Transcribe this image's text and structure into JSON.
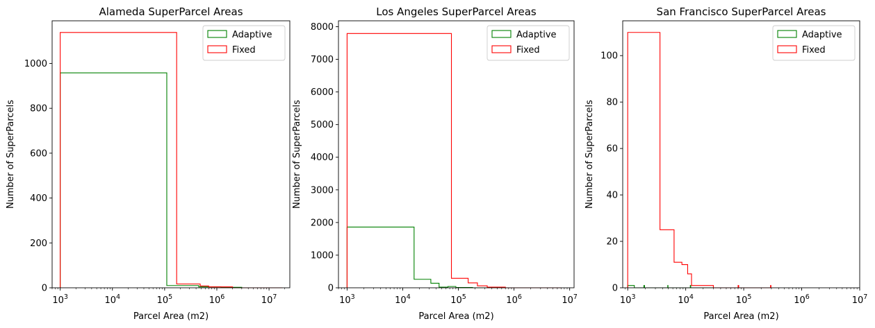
{
  "chart_data": [
    {
      "type": "histogram",
      "title": "Alameda SuperParcel Areas",
      "xlabel": "Parcel Area (m2)",
      "ylabel": "Number of SuperParcels",
      "xscale": "log",
      "xlim": [
        700,
        25000000
      ],
      "ylim": [
        0,
        1190
      ],
      "yticks": [
        0,
        200,
        400,
        600,
        800,
        1000
      ],
      "xtick_exponents": [
        3,
        4,
        5,
        6,
        7
      ],
      "legend": {
        "placement": "top-right",
        "entries": [
          "Adaptive",
          "Fixed"
        ]
      },
      "series": [
        {
          "name": "Adaptive",
          "color": "#008000",
          "bins": [
            {
              "x0": 1000,
              "x1": 110000,
              "y": 958
            },
            {
              "x0": 110000,
              "x1": 450000,
              "y": 10
            },
            {
              "x0": 450000,
              "x1": 1200000,
              "y": 4
            },
            {
              "x0": 1200000,
              "x1": 3000000,
              "y": 2
            },
            {
              "x0": 3000000,
              "x1": 18000000,
              "y": 0
            }
          ]
        },
        {
          "name": "Fixed",
          "color": "#ff0000",
          "bins": [
            {
              "x0": 1000,
              "x1": 170000,
              "y": 1138
            },
            {
              "x0": 170000,
              "x1": 480000,
              "y": 17
            },
            {
              "x0": 480000,
              "x1": 700000,
              "y": 8
            },
            {
              "x0": 700000,
              "x1": 2000000,
              "y": 4
            },
            {
              "x0": 2000000,
              "x1": 18000000,
              "y": 0
            }
          ]
        }
      ]
    },
    {
      "type": "histogram",
      "title": "Los Angeles SuperParcel Areas",
      "xlabel": "Parcel Area (m2)",
      "ylabel": "Number of SuperParcels",
      "xscale": "log",
      "xlim": [
        700,
        12000000
      ],
      "ylim": [
        0,
        8180
      ],
      "yticks": [
        0,
        1000,
        2000,
        3000,
        4000,
        5000,
        6000,
        7000,
        8000
      ],
      "xtick_exponents": [
        3,
        4,
        5,
        6,
        7
      ],
      "legend": {
        "placement": "top-right",
        "entries": [
          "Adaptive",
          "Fixed"
        ]
      },
      "series": [
        {
          "name": "Adaptive",
          "color": "#008000",
          "bins": [
            {
              "x0": 1000,
              "x1": 16000,
              "y": 1860
            },
            {
              "x0": 16000,
              "x1": 32000,
              "y": 260
            },
            {
              "x0": 32000,
              "x1": 45000,
              "y": 140
            },
            {
              "x0": 45000,
              "x1": 65000,
              "y": 20
            },
            {
              "x0": 65000,
              "x1": 90000,
              "y": 40
            },
            {
              "x0": 90000,
              "x1": 180000,
              "y": 10
            },
            {
              "x0": 180000,
              "x1": 7000000,
              "y": 0
            }
          ]
        },
        {
          "name": "Fixed",
          "color": "#ff0000",
          "bins": [
            {
              "x0": 1000,
              "x1": 75000,
              "y": 7790
            },
            {
              "x0": 75000,
              "x1": 150000,
              "y": 290
            },
            {
              "x0": 150000,
              "x1": 220000,
              "y": 150
            },
            {
              "x0": 220000,
              "x1": 330000,
              "y": 60
            },
            {
              "x0": 330000,
              "x1": 700000,
              "y": 20
            },
            {
              "x0": 700000,
              "x1": 7000000,
              "y": 0
            }
          ]
        }
      ]
    },
    {
      "type": "histogram",
      "title": "San Francisco SuperParcel Areas",
      "xlabel": "Parcel Area (m2)",
      "ylabel": "Number of SuperParcels",
      "xscale": "log",
      "xlim": [
        820,
        10000000
      ],
      "ylim": [
        0,
        115
      ],
      "yticks": [
        0,
        20,
        40,
        60,
        80,
        100
      ],
      "xtick_exponents": [
        3,
        4,
        5,
        6,
        7
      ],
      "legend": {
        "placement": "top-right",
        "entries": [
          "Adaptive",
          "Fixed"
        ]
      },
      "series": [
        {
          "name": "Adaptive",
          "color": "#008000",
          "bins": [
            {
              "x0": 1000,
              "x1": 1300,
              "y": 1
            },
            {
              "x0": 1300,
              "x1": 1900,
              "y": 0
            },
            {
              "x0": 1900,
              "x1": 1950,
              "y": 1
            },
            {
              "x0": 1950,
              "x1": 4900,
              "y": 0
            },
            {
              "x0": 4900,
              "x1": 4950,
              "y": 1
            },
            {
              "x0": 4950,
              "x1": 12000,
              "y": 0
            },
            {
              "x0": 12000,
              "x1": 12200,
              "y": 1
            },
            {
              "x0": 12200,
              "x1": 300000,
              "y": 0
            }
          ]
        },
        {
          "name": "Fixed",
          "color": "#ff0000",
          "bins": [
            {
              "x0": 1000,
              "x1": 3600,
              "y": 110
            },
            {
              "x0": 3600,
              "x1": 6300,
              "y": 25
            },
            {
              "x0": 6300,
              "x1": 8600,
              "y": 11
            },
            {
              "x0": 8600,
              "x1": 10800,
              "y": 10
            },
            {
              "x0": 10800,
              "x1": 12600,
              "y": 6
            },
            {
              "x0": 12600,
              "x1": 13000,
              "y": 1
            },
            {
              "x0": 13000,
              "x1": 30000,
              "y": 1
            },
            {
              "x0": 30000,
              "x1": 80000,
              "y": 0
            },
            {
              "x0": 80000,
              "x1": 82000,
              "y": 1
            },
            {
              "x0": 82000,
              "x1": 290000,
              "y": 0
            },
            {
              "x0": 290000,
              "x1": 295000,
              "y": 1
            }
          ]
        }
      ]
    }
  ]
}
